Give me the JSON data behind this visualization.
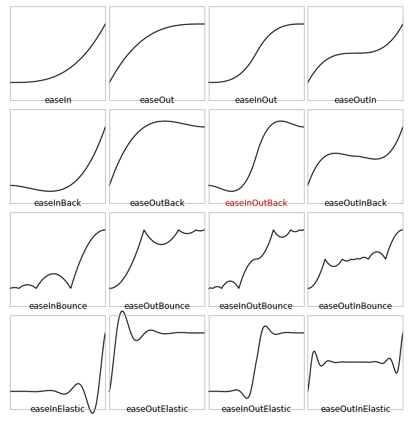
{
  "functions": [
    "easeIn",
    "easeOut",
    "easeInOut",
    "easeOutIn",
    "easeInBack",
    "easeOutBack",
    "easeInOutBack",
    "easeOutInBack",
    "easeInBounce",
    "easeOutBounce",
    "easeInOutBounce",
    "easeOutInBounce",
    "easeInElastic",
    "easeOutElastic",
    "easeInOutElastic",
    "easeOutInElastic"
  ],
  "label_colors": {
    "easeIn": "#000000",
    "easeOut": "#000000",
    "easeInOut": "#000000",
    "easeOutIn": "#000000",
    "easeInBack": "#000000",
    "easeOutBack": "#000000",
    "easeInOutBack": "#cc0000",
    "easeOutInBack": "#000000",
    "easeInBounce": "#000000",
    "easeOutBounce": "#000000",
    "easeInOutBounce": "#000000",
    "easeOutInBounce": "#000000",
    "easeInElastic": "#000000",
    "easeOutElastic": "#000000",
    "easeInOutElastic": "#000000",
    "easeOutInElastic": "#000000"
  },
  "line_color": "#000000",
  "line_width": 1.0,
  "bg_color": "#ffffff",
  "box_color": "#aaaaaa",
  "grid_rows": 4,
  "grid_cols": 4,
  "figsize": [
    5.76,
    6.04
  ],
  "dpi": 100,
  "ylim": [
    -0.3,
    1.3
  ],
  "xlim": [
    0,
    1
  ],
  "label_fontsize": 8.5
}
